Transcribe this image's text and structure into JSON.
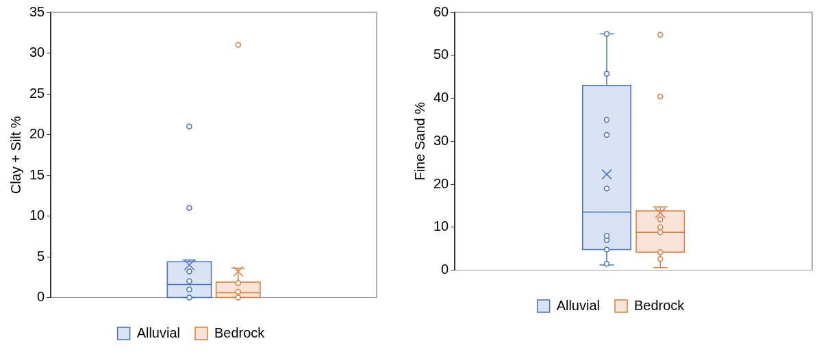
{
  "chart_data": [
    {
      "type": "box",
      "ylabel": "Clay + Silt %",
      "categories": [
        null
      ],
      "ylim": [
        0,
        35
      ],
      "yticks": [
        0,
        5,
        10,
        15,
        20,
        25,
        30,
        35
      ],
      "grid": false,
      "legend": "bottom",
      "marker": "circle",
      "series": [
        {
          "name": "Alluvial",
          "color": "#4472c4",
          "boxes": [
            {
              "low": 0,
              "q1": 0,
              "median": 1.6,
              "q3": 4.4,
              "high": 4.6,
              "mean": 4.0,
              "outliers": [
                0,
                1.0,
                2.0,
                3.2,
                11,
                21
              ]
            }
          ]
        },
        {
          "name": "Bedrock",
          "color": "#e07b39",
          "boxes": [
            {
              "low": 0,
              "q1": 0,
              "median": 0.6,
              "q3": 1.9,
              "high": 3.6,
              "mean": 3.2,
              "outliers": [
                0,
                0.7,
                1.8,
                31
              ]
            }
          ]
        }
      ]
    },
    {
      "type": "box",
      "ylabel": "Fine Sand %",
      "categories": [
        null
      ],
      "ylim": [
        0,
        60
      ],
      "yticks": [
        0,
        10,
        20,
        30,
        40,
        50,
        60
      ],
      "grid": false,
      "legend": "bottom",
      "marker": "circle",
      "series": [
        {
          "name": "Alluvial",
          "color": "#4472c4",
          "boxes": [
            {
              "low": 1.2,
              "q1": 4.8,
              "median": 13.5,
              "q3": 43,
              "high": 55,
              "mean": 22.3,
              "outliers": [
                1.5,
                4.8,
                7,
                8,
                19,
                31.5,
                35,
                45.7,
                55
              ]
            }
          ]
        },
        {
          "name": "Bedrock",
          "color": "#e07b39",
          "boxes": [
            {
              "low": 0.6,
              "q1": 4.2,
              "median": 8.8,
              "q3": 13.8,
              "high": 14.7,
              "mean": 13.3,
              "outliers": [
                2.6,
                4.2,
                8.8,
                10,
                11.8,
                40.4,
                54.8
              ]
            }
          ]
        }
      ]
    }
  ]
}
